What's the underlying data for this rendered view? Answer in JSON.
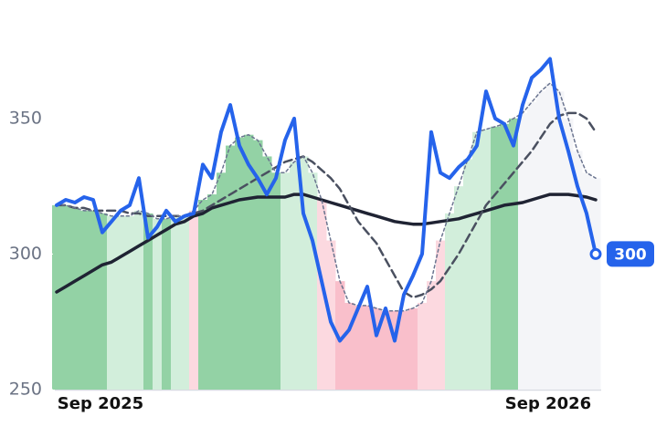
{
  "chart_data": {
    "type": "line",
    "categories": [
      null,
      null,
      null,
      null,
      null,
      "Sep 2025",
      null,
      null,
      null,
      null,
      null,
      null,
      null,
      null,
      null,
      null,
      null,
      null,
      null,
      null,
      null,
      null,
      null,
      null,
      null,
      null,
      null,
      null,
      null,
      null,
      null,
      null,
      null,
      null,
      null,
      null,
      null,
      null,
      null,
      null,
      null,
      null,
      null,
      null,
      null,
      null,
      null,
      null,
      null,
      null,
      null,
      null,
      null,
      null,
      "Sep 2026",
      null,
      null,
      null,
      null,
      null
    ],
    "ylim": [
      250,
      390
    ],
    "yticks": [
      250,
      300,
      350
    ],
    "series": [
      {
        "type": "bar",
        "values": [
          318,
          318,
          317,
          316,
          316,
          315,
          314,
          314,
          314,
          316,
          315,
          313,
          313,
          314,
          314,
          316,
          320,
          322,
          330,
          340,
          343,
          344,
          342,
          336,
          330,
          330,
          334,
          336,
          330,
          320,
          305,
          290,
          282,
          281,
          281,
          280,
          279,
          279,
          279,
          280,
          282,
          290,
          305,
          315,
          325,
          335,
          345,
          346,
          347,
          348,
          350,
          352,
          356,
          360,
          363,
          360,
          350,
          338,
          330,
          328
        ],
        "colors": [
          "#93d2a5",
          "#93d2a5",
          "#93d2a5",
          "#93d2a5",
          "#93d2a5",
          "#93d2a5",
          "#d2eedb",
          "#d2eedb",
          "#d2eedb",
          "#d2eedb",
          "#93d2a5",
          "#d2eedb",
          "#93d2a5",
          "#d2eedb",
          "#d2eedb",
          "#fcd9e0",
          "#93d2a5",
          "#93d2a5",
          "#93d2a5",
          "#93d2a5",
          "#93d2a5",
          "#93d2a5",
          "#93d2a5",
          "#93d2a5",
          "#93d2a5",
          "#d2eedb",
          "#d2eedb",
          "#d2eedb",
          "#d2eedb",
          "#fcd9e0",
          "#fcd9e0",
          "#f9bfcb",
          "#f9bfcb",
          "#f9bfcb",
          "#f9bfcb",
          "#f9bfcb",
          "#f9bfcb",
          "#f9bfcb",
          "#f9bfcb",
          "#f9bfcb",
          "#fcd9e0",
          "#fcd9e0",
          "#fcd9e0",
          "#d2eedb",
          "#d2eedb",
          "#d2eedb",
          "#d2eedb",
          "#d2eedb",
          "#93d2a5",
          "#93d2a5",
          "#93d2a5",
          "#f4f5f8",
          "#f4f5f8",
          "#f4f5f8",
          "#f4f5f8",
          "#f4f5f8",
          "#f4f5f8",
          "#f4f5f8",
          "#f4f5f8",
          "#f4f5f8"
        ]
      },
      {
        "color": "#1f2333",
        "width": 3.5,
        "dash": "none",
        "values": [
          286,
          288,
          290,
          292,
          294,
          296,
          297,
          299,
          301,
          303,
          305,
          307,
          309,
          311,
          312,
          314,
          315,
          317,
          318,
          319,
          320,
          320.5,
          321,
          321,
          321,
          321,
          322,
          322,
          321,
          320,
          319,
          318,
          317,
          316,
          315,
          314,
          313,
          312,
          311.5,
          311,
          311,
          311.5,
          312,
          312.5,
          313,
          314,
          315,
          316,
          317,
          318,
          318.5,
          319,
          320,
          321,
          322,
          322,
          322,
          321.5,
          321,
          320
        ]
      },
      {
        "color": "#4a5060",
        "width": 2.5,
        "dash": "9 5",
        "values": [
          318,
          318,
          317,
          317,
          316,
          316,
          316,
          316,
          315,
          315,
          314,
          314,
          314,
          314,
          314,
          315,
          316,
          318,
          320,
          322,
          324,
          326,
          328,
          330,
          332,
          334,
          335,
          336,
          334,
          331,
          328,
          324,
          318,
          312,
          308,
          304,
          298,
          292,
          286,
          284,
          285,
          287,
          290,
          295,
          300,
          306,
          312,
          318,
          322,
          326,
          330,
          334,
          338,
          343,
          348,
          351,
          352,
          352,
          350,
          345
        ]
      },
      {
        "color": "#6b7590",
        "width": 1.5,
        "dash": "3 3",
        "values": [
          318,
          318,
          317,
          316,
          316,
          315,
          314,
          314,
          314,
          316,
          315,
          313,
          313,
          314,
          314,
          316,
          320,
          322,
          330,
          340,
          343,
          344,
          342,
          336,
          330,
          330,
          334,
          336,
          330,
          320,
          305,
          290,
          282,
          281,
          281,
          280,
          279,
          279,
          279,
          280,
          282,
          290,
          305,
          315,
          325,
          335,
          345,
          346,
          347,
          348,
          350,
          352,
          356,
          360,
          363,
          360,
          350,
          338,
          330,
          328
        ]
      },
      {
        "color": "#2563eb",
        "width": 4,
        "dash": "none",
        "last_label": true,
        "values": [
          318,
          320,
          319,
          321,
          320,
          308,
          312,
          316,
          318,
          328,
          306,
          310,
          316,
          312,
          314,
          315,
          333,
          328,
          345,
          355,
          340,
          333,
          328,
          322,
          328,
          342,
          350,
          315,
          305,
          290,
          275,
          268,
          272,
          280,
          288,
          270,
          280,
          268,
          285,
          292,
          300,
          345,
          330,
          328,
          332,
          335,
          340,
          360,
          350,
          348,
          340,
          355,
          365,
          368,
          372,
          350,
          338,
          325,
          315,
          300
        ]
      }
    ]
  }
}
